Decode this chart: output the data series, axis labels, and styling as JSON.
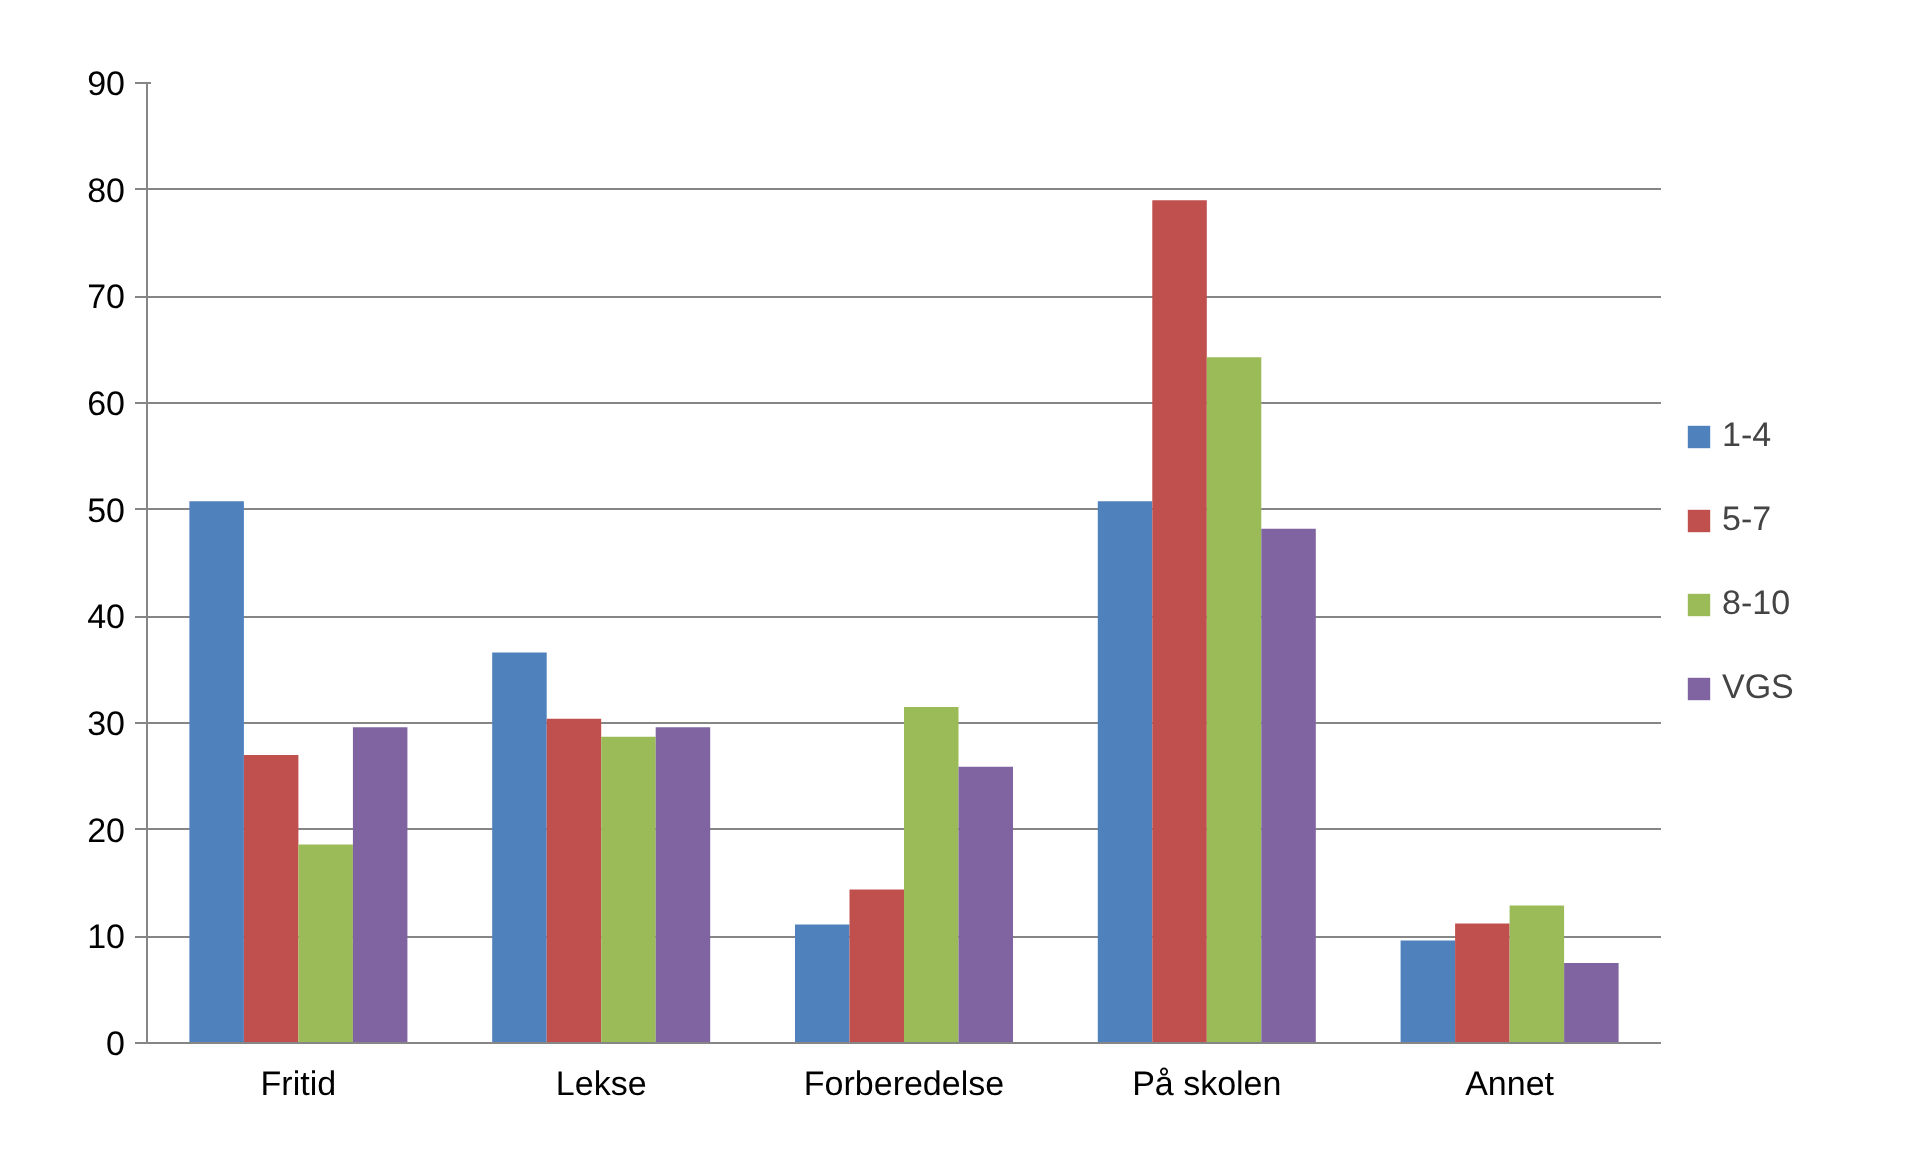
{
  "chart_data": {
    "type": "bar",
    "categories": [
      "Fritid",
      "Lekse",
      "Forberedelse",
      "På skolen",
      "Annet"
    ],
    "series": [
      {
        "name": "1-4",
        "color": "#4f81bd",
        "values": [
          50.8,
          36.6,
          11.1,
          50.8,
          9.6
        ]
      },
      {
        "name": "5-7",
        "color": "#c0504d",
        "values": [
          27.0,
          30.4,
          14.4,
          79.0,
          11.2
        ]
      },
      {
        "name": "8-10",
        "color": "#9bbb59",
        "values": [
          18.6,
          28.7,
          31.5,
          64.3,
          12.9
        ]
      },
      {
        "name": "VGS",
        "color": "#8064a2",
        "values": [
          29.6,
          29.6,
          25.9,
          48.2,
          7.5
        ]
      }
    ],
    "ylim": [
      0,
      90
    ],
    "yticks": [
      0,
      10,
      20,
      30,
      40,
      50,
      60,
      70,
      80,
      90
    ],
    "grid": "y",
    "legend": "right"
  }
}
